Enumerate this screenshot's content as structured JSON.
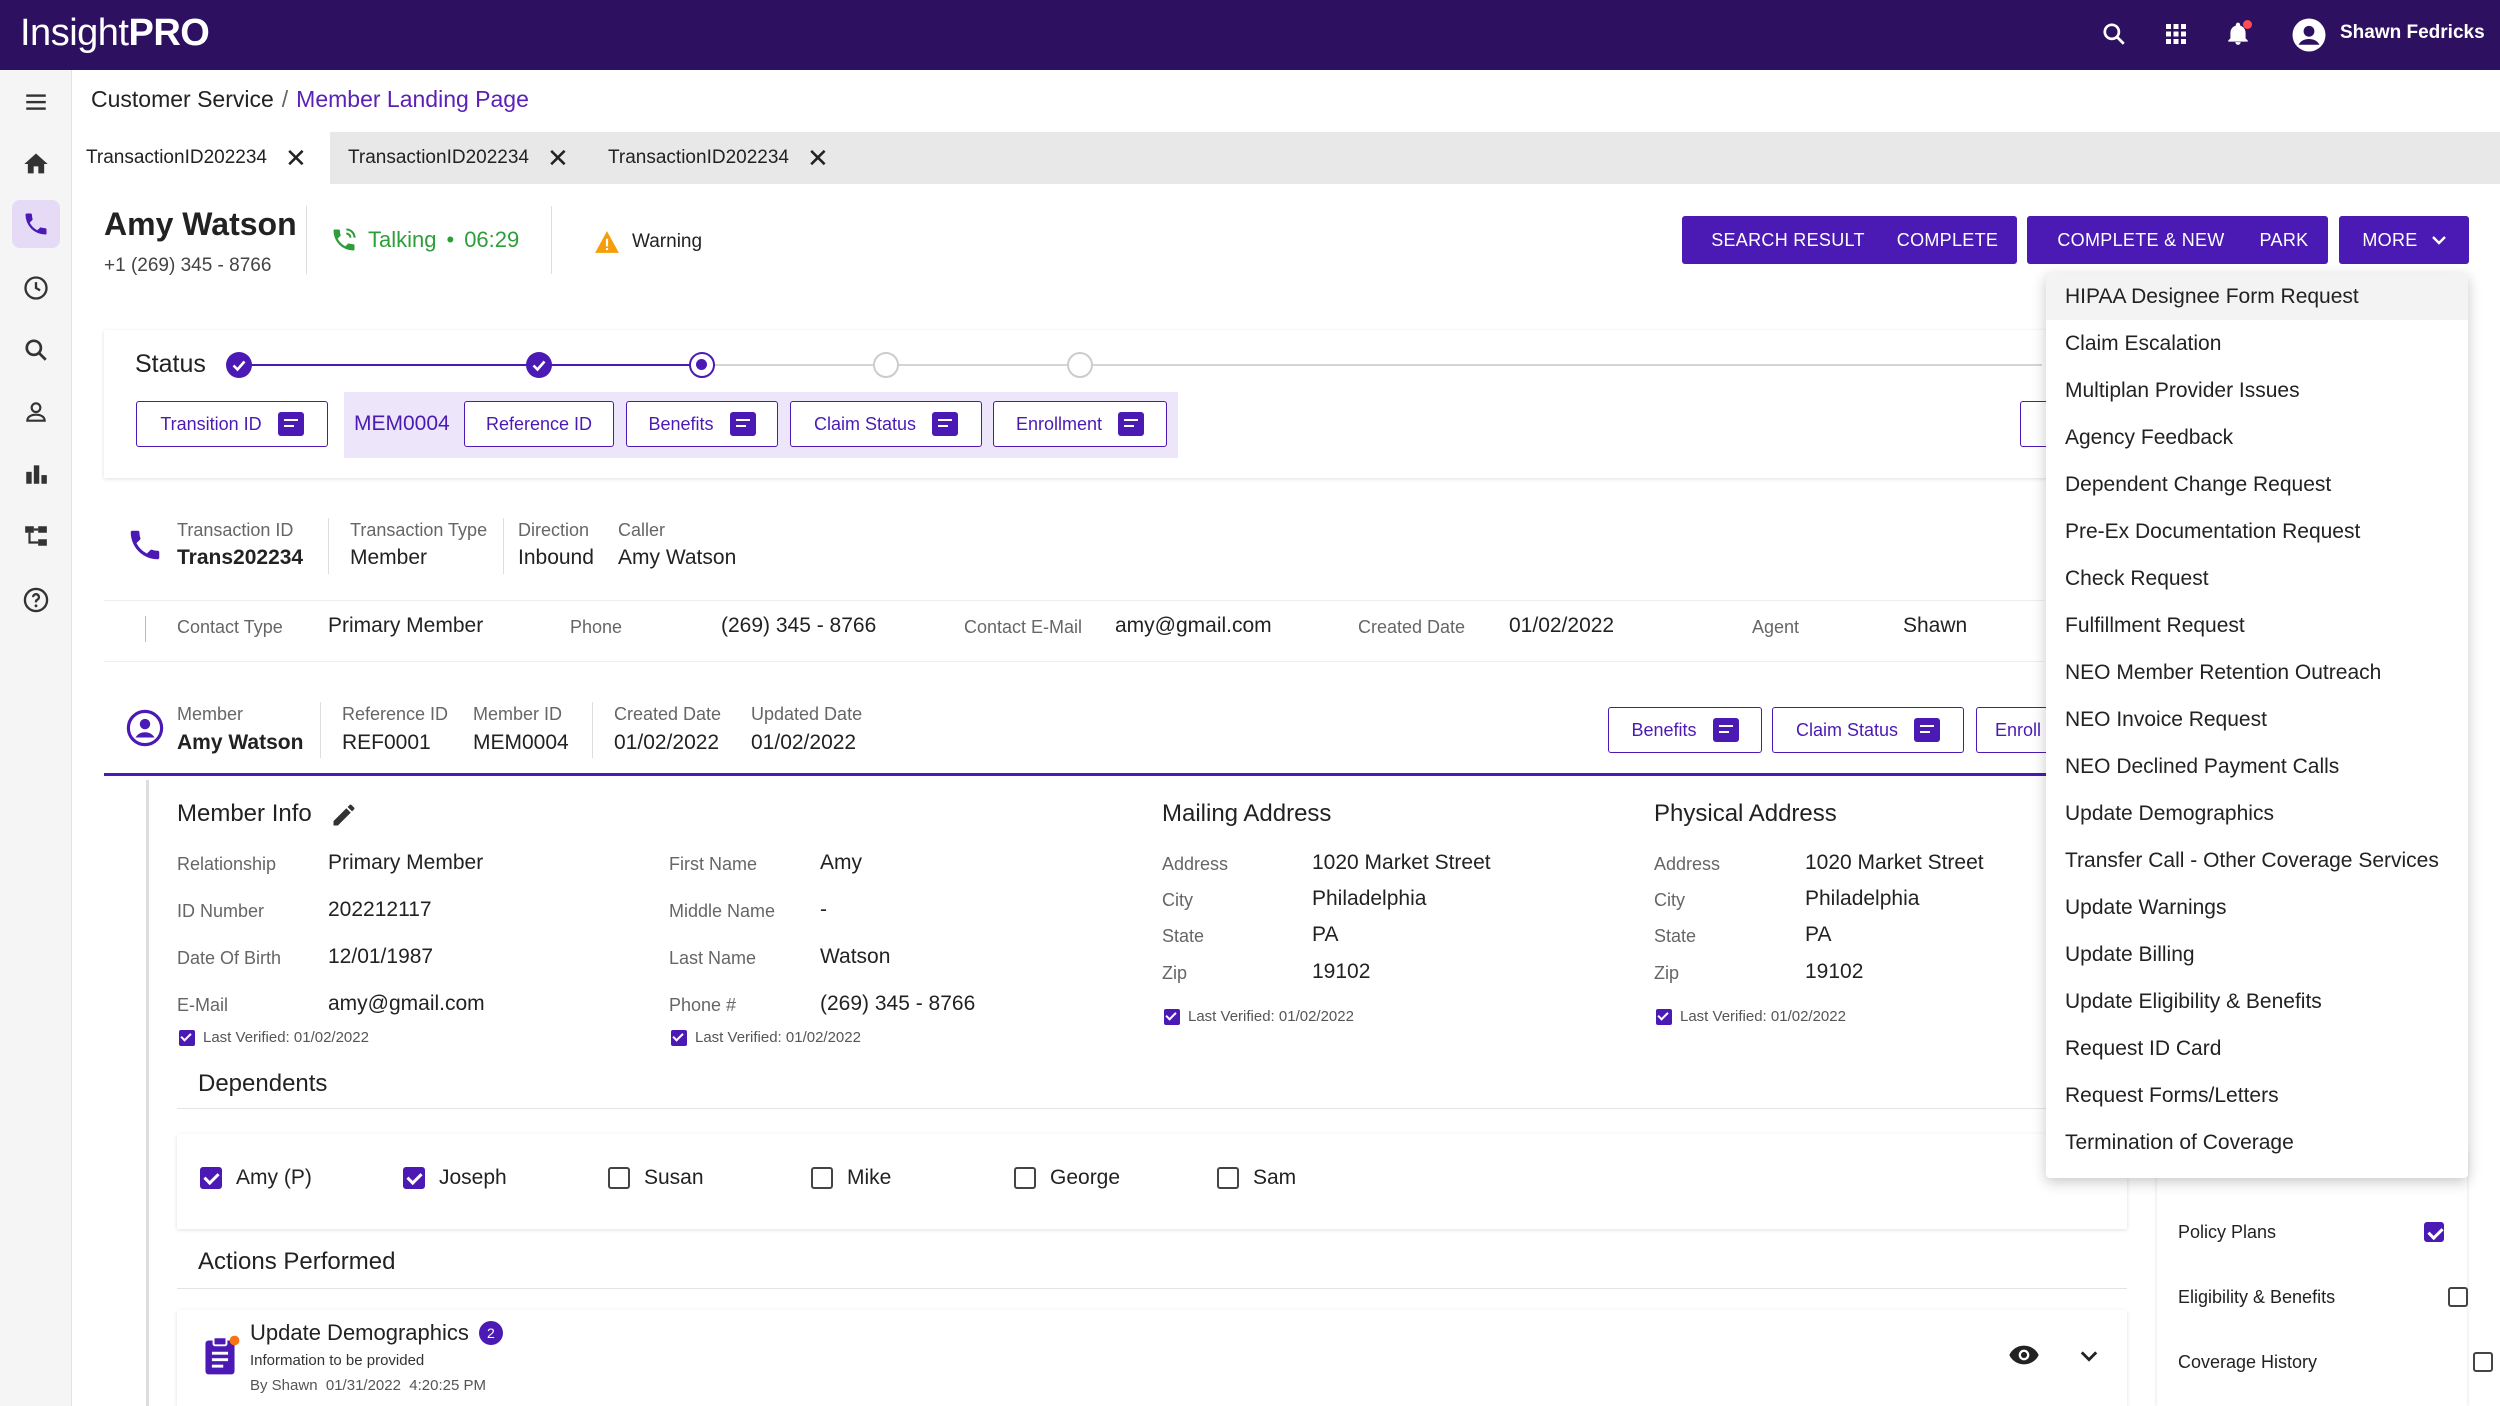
{
  "app": {
    "logo_left": "Insight",
    "logo_right": "PRO",
    "user_name": "Shawn Fedricks"
  },
  "breadcrumb": {
    "parent": "Customer Service",
    "separator": "/",
    "current": "Member Landing Page"
  },
  "tabs": [
    {
      "label": "TransactionID202234"
    },
    {
      "label": "TransactionID202234"
    },
    {
      "label": "TransactionID202234"
    }
  ],
  "header": {
    "name": "Amy Watson",
    "phone": "+1 (269) 345 - 8766",
    "call_status": "Talking",
    "call_sep": "•",
    "call_timer": "06:29",
    "warning": "Warning"
  },
  "actions": {
    "search_result": "SEARCH RESULT",
    "complete": "COMPLETE",
    "complete_new": "COMPLETE & NEW",
    "park": "PARK",
    "more": "MORE"
  },
  "status": {
    "title": "Status",
    "buttons": {
      "transition": "Transition ID",
      "mem": "MEM0004",
      "reference": "Reference ID",
      "benefits": "Benefits",
      "claim": "Claim Status",
      "enrollment": "Enrollment"
    }
  },
  "transaction": {
    "id_label": "Transaction ID",
    "id_value": "Trans202234",
    "type_label": "Transaction Type",
    "type_value": "Member",
    "direction_label": "Direction",
    "direction_value": "Inbound",
    "caller_label": "Caller",
    "caller_value": "Amy Watson",
    "contact_type_label": "Contact Type",
    "contact_type_value": "Primary Member",
    "phone_label": "Phone",
    "phone_value": "(269) 345 - 8766",
    "email_label": "Contact E-Mail",
    "email_value": "amy@gmail.com",
    "created_label": "Created Date",
    "created_value": "01/02/2022",
    "agent_label": "Agent",
    "agent_value": "Shawn"
  },
  "member": {
    "member_label": "Member",
    "member_value": "Amy Watson",
    "ref_label": "Reference ID",
    "ref_value": "REF0001",
    "memid_label": "Member ID",
    "memid_value": "MEM0004",
    "created_label": "Created Date",
    "created_value": "01/02/2022",
    "updated_label": "Updated Date",
    "updated_value": "01/02/2022",
    "btn_benefits": "Benefits",
    "btn_claim": "Claim Status",
    "btn_enroll": "Enroll"
  },
  "member_info": {
    "title": "Member Info",
    "relationship_label": "Relationship",
    "relationship_value": "Primary Member",
    "idnum_label": "ID Number",
    "idnum_value": "202212117",
    "dob_label": "Date Of Birth",
    "dob_value": "12/01/1987",
    "email_label": "E-Mail",
    "email_value": "amy@gmail.com",
    "first_label": "First Name",
    "first_value": "Amy",
    "middle_label": "Middle Name",
    "middle_value": "-",
    "last_label": "Last Name",
    "last_value": "Watson",
    "phone_label": "Phone #",
    "phone_value": "(269) 345 - 8766",
    "verified": "Last Verified: 01/02/2022"
  },
  "mailing": {
    "title": "Mailing Address",
    "address_label": "Address",
    "address_value": "1020 Market Street",
    "city_label": "City",
    "city_value": "Philadelphia",
    "state_label": "State",
    "state_value": "PA",
    "zip_label": "Zip",
    "zip_value": "19102",
    "verified": "Last Verified: 01/02/2022"
  },
  "physical": {
    "title": "Physical Address",
    "address_label": "Address",
    "address_value": "1020 Market Street",
    "city_label": "City",
    "city_value": "Philadelphia",
    "state_label": "State",
    "state_value": "PA",
    "zip_label": "Zip",
    "zip_value": "19102",
    "verified": "Last Verified: 01/02/2022"
  },
  "dependents": {
    "title": "Dependents",
    "items": [
      {
        "name": "Amy (P)",
        "checked": true
      },
      {
        "name": "Joseph",
        "checked": true
      },
      {
        "name": "Susan",
        "checked": false
      },
      {
        "name": "Mike",
        "checked": false
      },
      {
        "name": "George",
        "checked": false
      },
      {
        "name": "Sam",
        "checked": false
      }
    ]
  },
  "actions_performed": {
    "title": "Actions Performed",
    "item_title": "Update Demographics",
    "item_count": "2",
    "item_sub": "Information to be provided",
    "item_by": "By Shawn  01/31/2022  4:20:25 PM"
  },
  "side_checks": [
    {
      "label": "Policy Plans",
      "checked": true
    },
    {
      "label": "Eligibility & Benefits",
      "checked": false
    },
    {
      "label": "Coverage History",
      "checked": false
    }
  ],
  "more_menu": [
    "HIPAA Designee Form Request",
    "Claim Escalation",
    "Multiplan Provider Issues",
    "Agency Feedback",
    "Dependent Change Request",
    "Pre-Ex Documentation Request",
    "Check Request",
    "Fulfillment Request",
    "NEO Member Retention Outreach",
    "NEO Invoice Request",
    "NEO Declined Payment Calls",
    "Update Demographics",
    "Transfer Call - Other Coverage Services",
    "Update Warnings",
    "Update Billing",
    "Update Eligibility & Benefits",
    "Request ID Card",
    "Request Forms/Letters",
    "Termination of Coverage"
  ],
  "colors": {
    "brand": "#2d1160",
    "accent": "#4b1ab5",
    "talking": "#2e9e3a",
    "warning": "#f59e0b"
  }
}
